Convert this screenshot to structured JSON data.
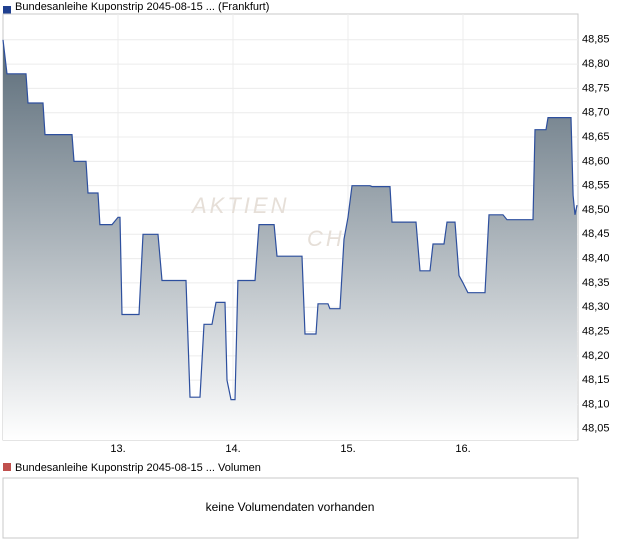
{
  "chart_data": {
    "type": "line",
    "legend": "Bundesanleihe Kuponstrip 2045-08-15  ... (Frankfurt)",
    "legend_color": "#1f3f8f",
    "watermark": [
      "AKTIEN",
      "CHECK"
    ],
    "x": [
      0,
      0.035,
      0.2,
      0.217,
      0.348,
      0.365,
      0.6,
      0.617,
      0.722,
      0.739,
      0.826,
      0.843,
      0.948,
      1.0,
      1.017,
      1.035,
      1.183,
      1.217,
      1.348,
      1.383,
      1.591,
      1.626,
      1.713,
      1.748,
      1.817,
      1.852,
      1.93,
      1.948,
      1.983,
      2.017,
      2.043,
      2.191,
      2.226,
      2.357,
      2.383,
      2.6,
      2.626,
      2.722,
      2.739,
      2.826,
      2.843,
      2.93,
      2.965,
      3.0,
      3.035,
      3.191,
      3.209,
      3.365,
      3.383,
      3.591,
      3.626,
      3.713,
      3.739,
      3.835,
      3.861,
      3.93,
      3.965,
      4.0,
      4.043,
      4.191,
      4.226,
      4.348,
      4.383,
      4.609,
      4.626,
      4.722,
      4.739,
      4.939,
      4.957,
      4.974,
      4.991
    ],
    "series": [
      {
        "name": "Bundesanleihe Kuponstrip 2045-08-15",
        "color": "#2d4f9e",
        "values": [
          48.85,
          48.78,
          48.78,
          48.72,
          48.72,
          48.655,
          48.655,
          48.6,
          48.6,
          48.535,
          48.535,
          48.47,
          48.47,
          48.485,
          48.485,
          48.285,
          48.285,
          48.45,
          48.45,
          48.355,
          48.355,
          48.115,
          48.115,
          48.265,
          48.265,
          48.31,
          48.31,
          48.15,
          48.11,
          48.11,
          48.355,
          48.355,
          48.47,
          48.47,
          48.405,
          48.405,
          48.245,
          48.245,
          48.307,
          48.307,
          48.297,
          48.297,
          48.44,
          48.485,
          48.55,
          48.55,
          48.548,
          48.548,
          48.475,
          48.475,
          48.375,
          48.375,
          48.43,
          48.43,
          48.475,
          48.475,
          48.365,
          48.35,
          48.33,
          48.33,
          48.49,
          48.49,
          48.48,
          48.48,
          48.665,
          48.665,
          48.69,
          48.69,
          48.53,
          48.49,
          48.51
        ]
      }
    ],
    "xlim": [
      0,
      5
    ],
    "xticks": [
      {
        "value": 1,
        "label": "13."
      },
      {
        "value": 2,
        "label": "14."
      },
      {
        "value": 3,
        "label": "15."
      },
      {
        "value": 4,
        "label": "16."
      }
    ],
    "ylim": [
      48.027,
      48.903
    ],
    "yticks": [
      {
        "value": 48.05,
        "label": "48,05"
      },
      {
        "value": 48.1,
        "label": "48,10"
      },
      {
        "value": 48.15,
        "label": "48,15"
      },
      {
        "value": 48.2,
        "label": "48,20"
      },
      {
        "value": 48.25,
        "label": "48,25"
      },
      {
        "value": 48.3,
        "label": "48,30"
      },
      {
        "value": 48.35,
        "label": "48,35"
      },
      {
        "value": 48.4,
        "label": "48,40"
      },
      {
        "value": 48.45,
        "label": "48,45"
      },
      {
        "value": 48.5,
        "label": "48,50"
      },
      {
        "value": 48.55,
        "label": "48,55"
      },
      {
        "value": 48.6,
        "label": "48,60"
      },
      {
        "value": 48.65,
        "label": "48,65"
      },
      {
        "value": 48.7,
        "label": "48,70"
      },
      {
        "value": 48.75,
        "label": "48,75"
      },
      {
        "value": 48.8,
        "label": "48,80"
      },
      {
        "value": 48.85,
        "label": "48,85"
      }
    ],
    "grid": true,
    "volume_legend": "Bundesanleihe Kuponstrip 2045-08-15  ... Volumen",
    "volume_legend_color": "#c0504d",
    "volume_message": "keine Volumendaten vorhanden"
  }
}
